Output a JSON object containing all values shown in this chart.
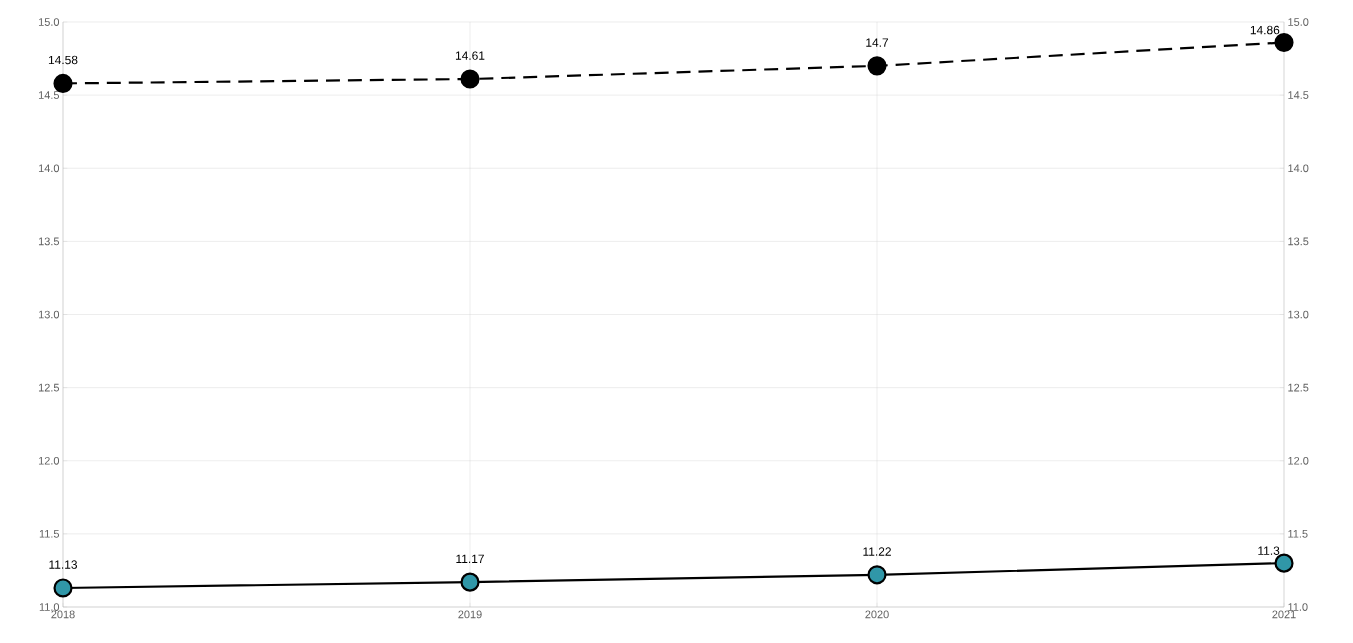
{
  "chart_data": {
    "type": "line",
    "categories": [
      "2018",
      "2019",
      "2020",
      "2021"
    ],
    "series": [
      {
        "color": "#000000",
        "values": [
          14.58,
          14.61,
          14.7,
          14.86
        ],
        "line_style": "dashed",
        "axis": "y"
      },
      {
        "color": "#3097a8",
        "values": [
          11.13,
          11.17,
          11.22,
          11.3
        ],
        "line_style": "solid",
        "axis": "y"
      }
    ],
    "ylim": [
      11.0,
      15.0
    ],
    "yticks": [
      {
        "value": 11.0,
        "label": "11.0"
      },
      {
        "value": 11.5,
        "label": "11.5"
      },
      {
        "value": 12.0,
        "label": "12.0"
      },
      {
        "value": 12.5,
        "label": "12.5"
      },
      {
        "value": 13.0,
        "label": "13.0"
      },
      {
        "value": 13.5,
        "label": "13.5"
      },
      {
        "value": 14.0,
        "label": "14.0"
      },
      {
        "value": 14.5,
        "label": "14.5"
      },
      {
        "value": 15.0,
        "label": "15.0"
      }
    ],
    "y2lim": [
      11.0,
      15.0
    ],
    "y2ticks": [
      {
        "value": 11.0,
        "label": "11.0"
      },
      {
        "value": 11.5,
        "label": "11.5"
      },
      {
        "value": 12.0,
        "label": "12.0"
      },
      {
        "value": 12.5,
        "label": "12.5"
      },
      {
        "value": 13.0,
        "label": "13.0"
      },
      {
        "value": 13.5,
        "label": "13.5"
      },
      {
        "value": 14.0,
        "label": "14.0"
      },
      {
        "value": 14.5,
        "label": "14.5"
      },
      {
        "value": 15.0,
        "label": "15.0"
      }
    ],
    "grid": true,
    "marker": "circle",
    "data_labels": true
  }
}
